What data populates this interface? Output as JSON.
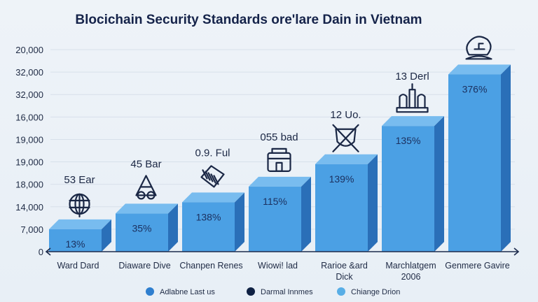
{
  "chart_data": {
    "type": "bar",
    "title": "Blocichain Security Standards ore'lare Dain in Vietnam",
    "xlabel": "",
    "ylabel": "",
    "y_tick_labels": [
      "0",
      "7,000",
      "14,000",
      "18,000",
      "19,000",
      "19,000",
      "16,000",
      "32,000",
      "32,000",
      "20,000"
    ],
    "ylim": [
      0,
      9
    ],
    "grid": true,
    "categories": [
      [
        "Ward Dard"
      ],
      [
        "Diaware Dive"
      ],
      [
        "Chanpen Renes"
      ],
      [
        "Wiowi! lad"
      ],
      [
        "Rarioe &ard",
        "Dick"
      ],
      [
        "Marchlatgem",
        "2006"
      ],
      [
        "Genmere Gavire"
      ]
    ],
    "series": [
      {
        "name": "Adlabne Last us",
        "values": [
          1.0,
          1.7,
          2.2,
          2.9,
          3.9,
          5.6,
          7.9
        ],
        "bar_labels": [
          "13%",
          "35%",
          "138%",
          "115%",
          "139%",
          "135%",
          "376%"
        ]
      }
    ],
    "annotations": [
      "53 Ear",
      "45 Bar",
      "0.9. Ful",
      "055 bad",
      "12 Uo.",
      "13 Derl",
      ""
    ],
    "icons": [
      "globe-icon",
      "pyramid-icon",
      "scroll-icon",
      "building-icon",
      "crossed-shield-icon",
      "monument-icon",
      "brain-icon"
    ],
    "legend": {
      "position": "bottom",
      "items": [
        {
          "label": "Adlabne Last us",
          "color": "#2f7fcf"
        },
        {
          "label": "Darmal Innmes",
          "color": "#0f2143"
        },
        {
          "label": "Chiange Drion",
          "color": "#58aee6"
        }
      ]
    },
    "colors": {
      "bar_front": "#4ba0e4",
      "bar_top": "#78bcef",
      "bar_side": "#2a6fb8",
      "axis": "#1c2b4c"
    }
  }
}
